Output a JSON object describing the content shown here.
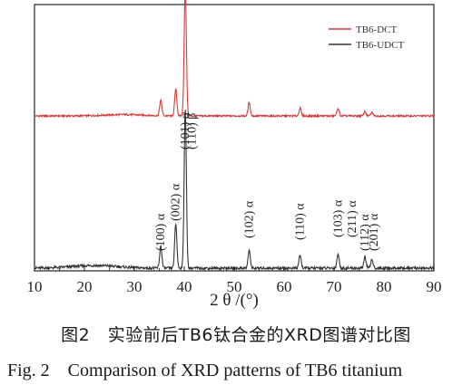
{
  "chart_data": {
    "type": "line",
    "xlabel": "2 θ /(°)",
    "xlim": [
      10,
      90
    ],
    "xticks": [
      10,
      20,
      30,
      40,
      50,
      60,
      70,
      80,
      90
    ],
    "grid": false,
    "legend_position": "top-right",
    "series": [
      {
        "name": "TB6-DCT",
        "color": "#d63a3a",
        "baseline": 0.0,
        "peaks": [
          {
            "x": 35.3,
            "y": 0.07
          },
          {
            "x": 38.3,
            "y": 0.12
          },
          {
            "x": 40.2,
            "y": 0.58
          },
          {
            "x": 53.0,
            "y": 0.06
          },
          {
            "x": 63.2,
            "y": 0.035
          },
          {
            "x": 70.8,
            "y": 0.035
          },
          {
            "x": 76.2,
            "y": 0.02
          },
          {
            "x": 77.6,
            "y": 0.015
          }
        ]
      },
      {
        "name": "TB6-UDCT",
        "color": "#333333",
        "baseline": 0.0,
        "peaks": [
          {
            "x": 35.3,
            "y": 0.1
          },
          {
            "x": 38.3,
            "y": 0.2
          },
          {
            "x": 40.2,
            "y": 0.72
          },
          {
            "x": 53.0,
            "y": 0.08
          },
          {
            "x": 63.2,
            "y": 0.06
          },
          {
            "x": 70.8,
            "y": 0.065
          },
          {
            "x": 76.2,
            "y": 0.05
          },
          {
            "x": 77.6,
            "y": 0.04
          }
        ]
      }
    ],
    "annotations": [
      {
        "text": "(100) α",
        "x": 35.3
      },
      {
        "text": "(002) α",
        "x": 38.3
      },
      {
        "text": "(101) α",
        "x": 40.2
      },
      {
        "text": "(110) β",
        "x": 41.5
      },
      {
        "text": "(102) α",
        "x": 53.0
      },
      {
        "text": "(110) α",
        "x": 63.2
      },
      {
        "text": "(103) α",
        "x": 70.8
      },
      {
        "text": "(211) α",
        "x": 73.6
      },
      {
        "text": "(112) α",
        "x": 76.2
      },
      {
        "text": "(201) α",
        "x": 78.0
      }
    ]
  },
  "caption": {
    "chinese": "图2　实验前后TB6钛合金的XRD图谱对比图",
    "english": "Fig. 2　Comparison of XRD patterns of TB6 titanium"
  }
}
